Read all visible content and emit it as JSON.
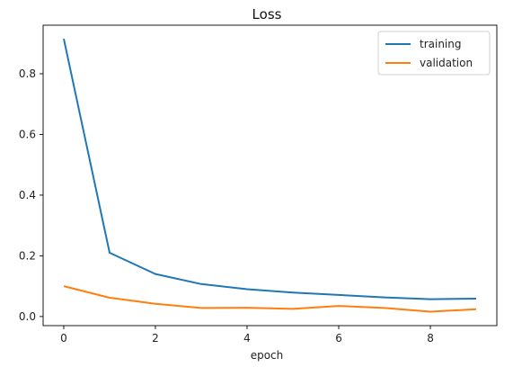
{
  "chart_data": {
    "type": "line",
    "title": "Loss",
    "xlabel": "epoch",
    "ylabel": "",
    "x": [
      0,
      1,
      2,
      3,
      4,
      5,
      6,
      7,
      8,
      9
    ],
    "xlim": [
      -0.45,
      9.45
    ],
    "ylim": [
      -0.03,
      0.96
    ],
    "xticks": [
      0,
      2,
      4,
      6,
      8
    ],
    "yticks": [
      0.0,
      0.2,
      0.4,
      0.6,
      0.8
    ],
    "xtick_labels": [
      "0",
      "2",
      "4",
      "6",
      "8"
    ],
    "ytick_labels": [
      "0.0",
      "0.2",
      "0.4",
      "0.6",
      "0.8"
    ],
    "grid": false,
    "legend_position": "top-right",
    "series": [
      {
        "name": "training",
        "color": "#1f77b4",
        "values": [
          0.915,
          0.21,
          0.14,
          0.107,
          0.09,
          0.079,
          0.071,
          0.063,
          0.057,
          0.059
        ]
      },
      {
        "name": "validation",
        "color": "#ff7f0e",
        "values": [
          0.1,
          0.062,
          0.042,
          0.028,
          0.029,
          0.025,
          0.035,
          0.028,
          0.016,
          0.024
        ]
      }
    ]
  }
}
